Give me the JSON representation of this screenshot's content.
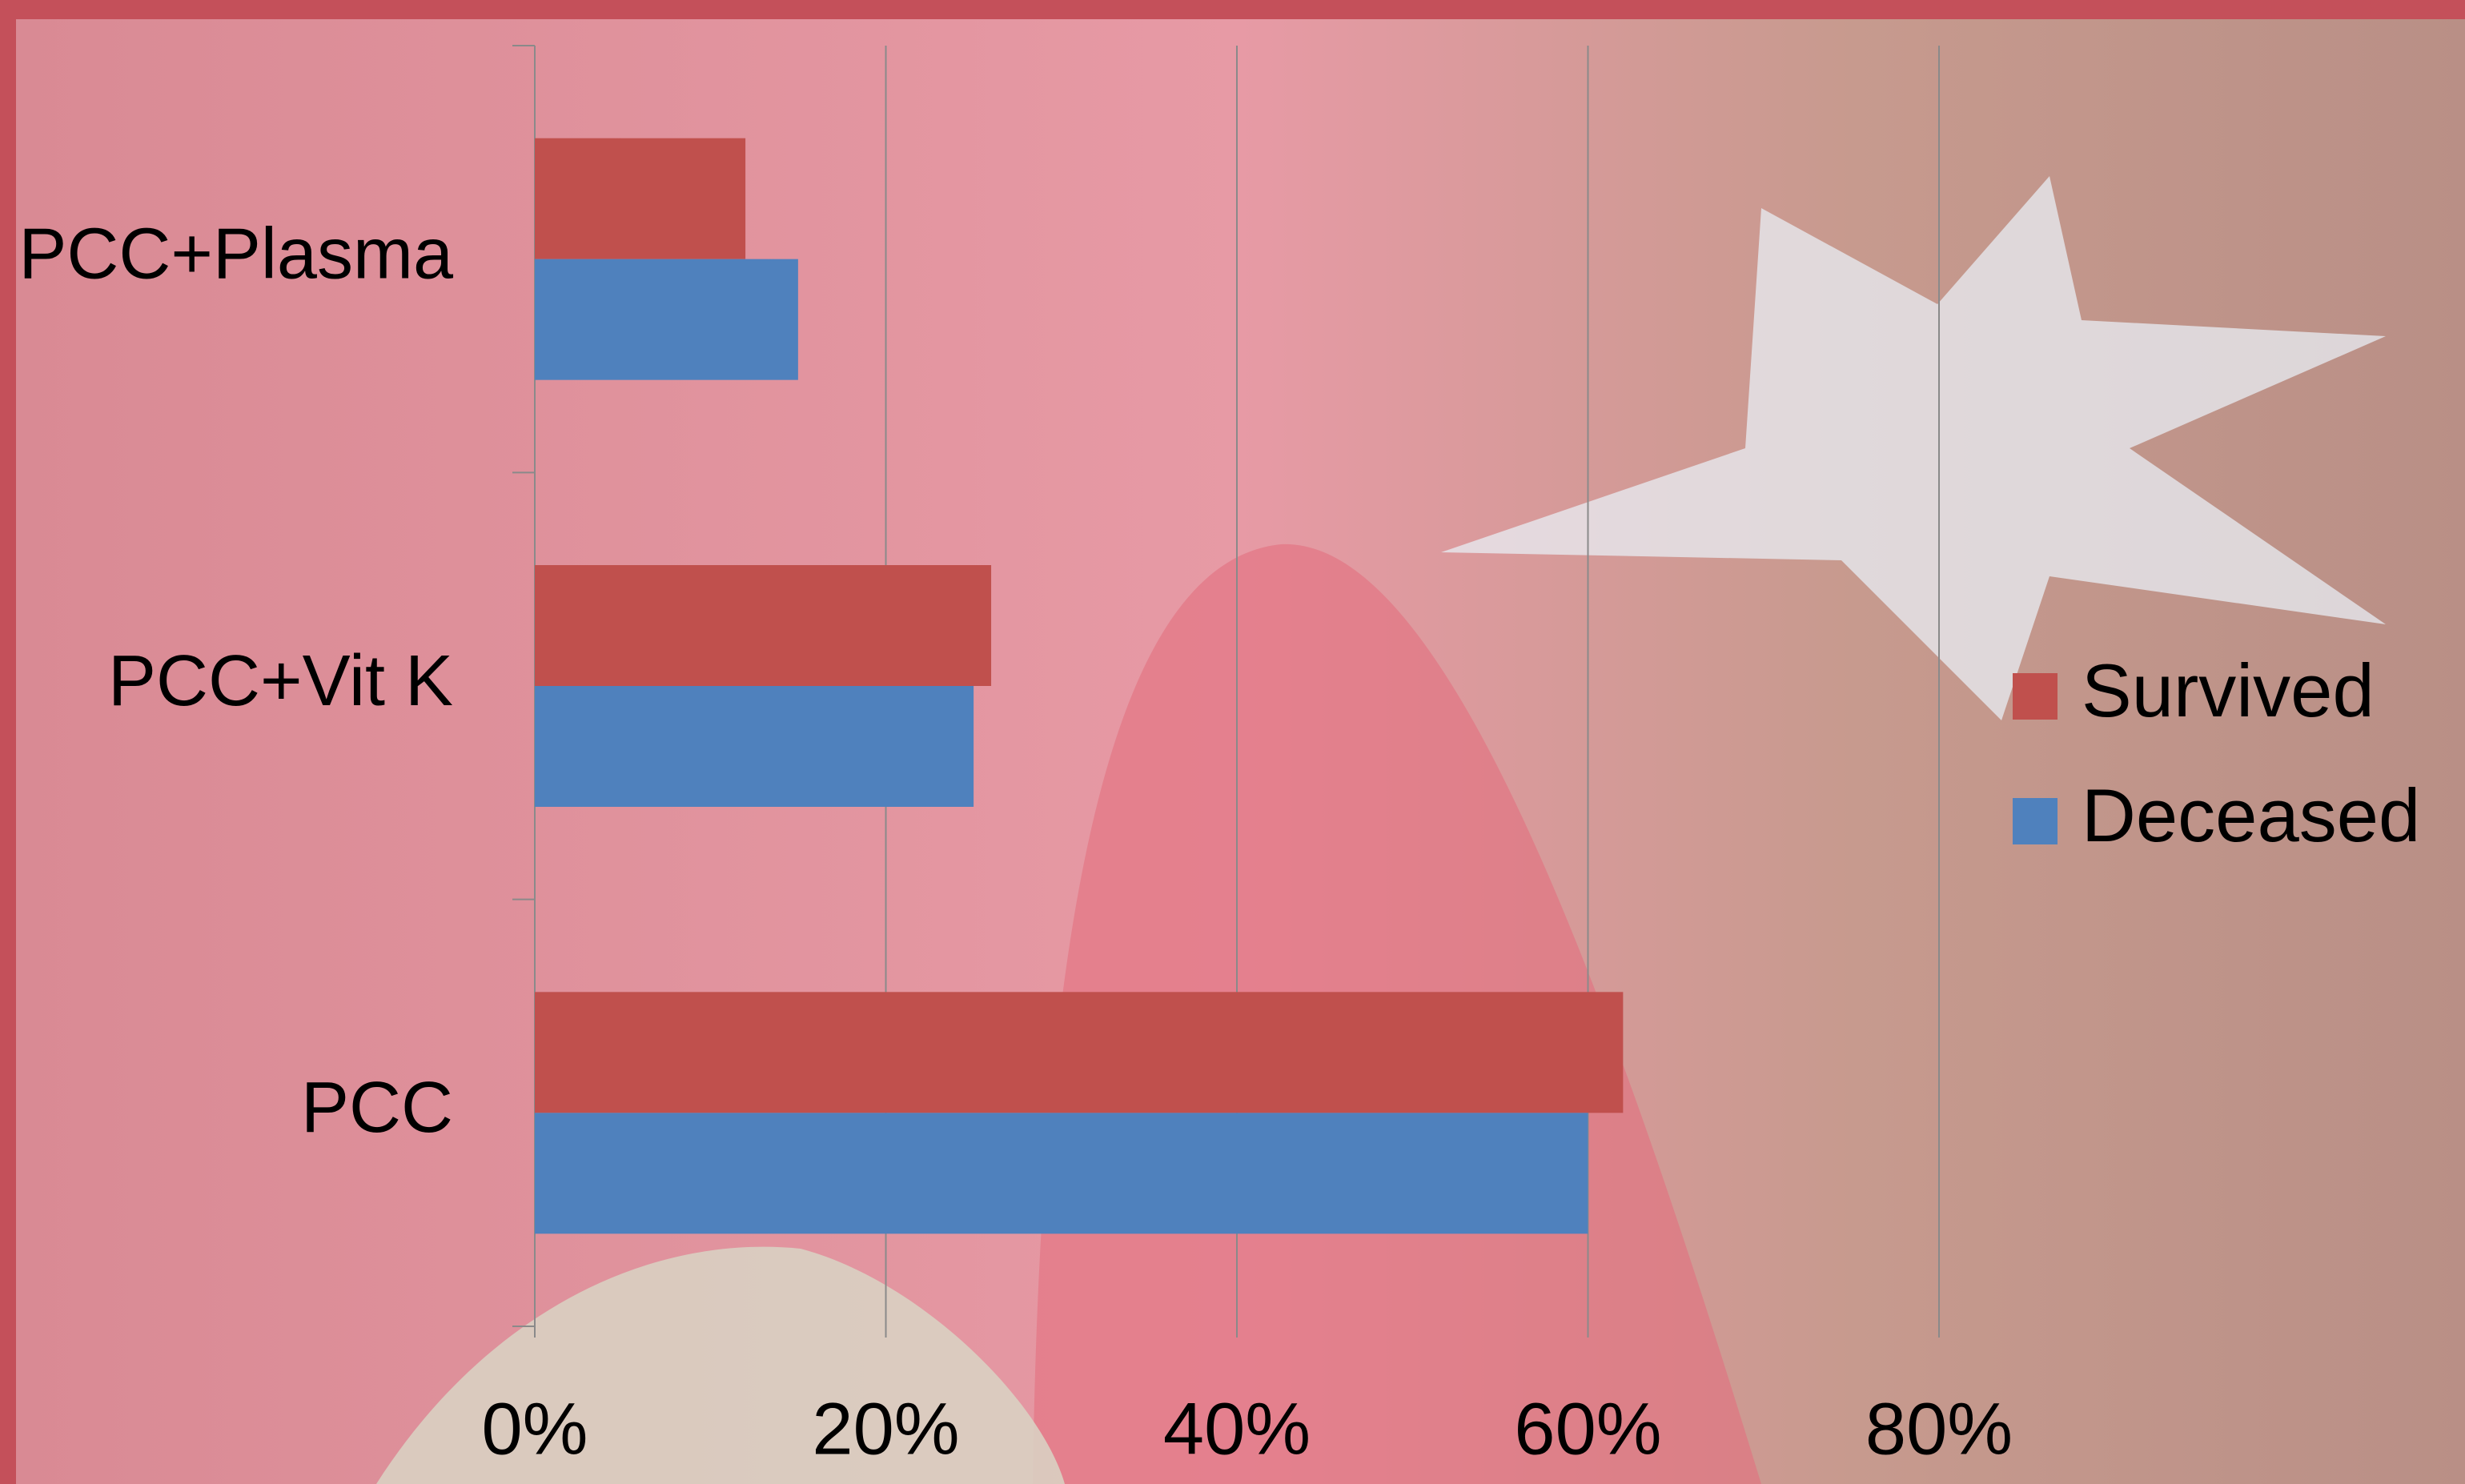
{
  "chart_data": {
    "type": "bar",
    "orientation": "horizontal",
    "categories": [
      "PCC+Plasma",
      "PCC+Vit K",
      "PCC"
    ],
    "series": [
      {
        "name": "Survived",
        "color": "#c0504d",
        "values": [
          12,
          26,
          62
        ]
      },
      {
        "name": "Deceased",
        "color": "#4f81bd",
        "values": [
          15,
          25,
          60
        ]
      }
    ],
    "xlim": [
      0,
      80
    ],
    "xticks": [
      {
        "value": 0,
        "label": "0%"
      },
      {
        "value": 20,
        "label": "20%"
      },
      {
        "value": 40,
        "label": "40%"
      },
      {
        "value": 60,
        "label": "60%"
      },
      {
        "value": 80,
        "label": "80%"
      }
    ],
    "grid": true,
    "legend": "right"
  }
}
